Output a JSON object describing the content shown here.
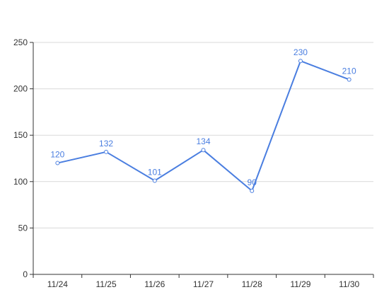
{
  "chart_data": {
    "type": "line",
    "categories": [
      "11/24",
      "11/25",
      "11/26",
      "11/27",
      "11/28",
      "11/29",
      "11/30"
    ],
    "series": [
      {
        "values": [
          120,
          132,
          101,
          134,
          90,
          230,
          210
        ]
      }
    ],
    "data_labels": [
      "120",
      "132",
      "101",
      "134",
      "90",
      "230",
      "210"
    ],
    "ylim": [
      0,
      250
    ],
    "yticks": [
      0,
      50,
      100,
      150,
      200,
      250
    ],
    "ytick_labels": [
      "0",
      "50",
      "100",
      "150",
      "200",
      "250"
    ],
    "grid": true,
    "legend": "none",
    "colors": {
      "series": "#4a7ee0",
      "grid": "#d9d9d9",
      "axis": "#333333",
      "label": "#333333"
    }
  }
}
